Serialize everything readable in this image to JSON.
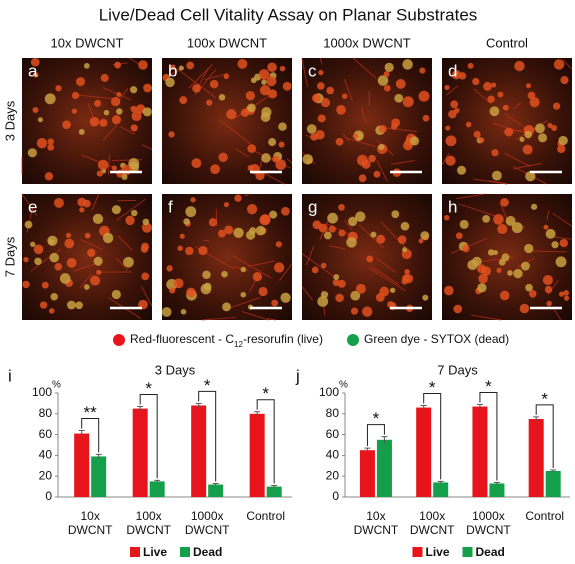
{
  "title": "Live/Dead Cell Vitality Assay on Planar Substrates",
  "columns": [
    "10x DWCNT",
    "100x DWCNT",
    "1000x DWCNT",
    "Control"
  ],
  "rows": [
    "3 Days",
    "7 Days"
  ],
  "panels": [
    [
      "a",
      "b",
      "c",
      "d"
    ],
    [
      "e",
      "f",
      "g",
      "h"
    ]
  ],
  "legend": {
    "live": {
      "prefix": "Red-fluorescent - C",
      "subscript": "12",
      "suffix": "-resorufin (live)"
    },
    "dead": "Green dye - SYTOX (dead)"
  },
  "chart_data": [
    {
      "type": "bar",
      "panel": "i",
      "title": "3 Days",
      "unit": "%",
      "categories": [
        "10x DWCNT",
        "100x DWCNT",
        "1000x DWCNT",
        "Control"
      ],
      "series": [
        {
          "name": "Live",
          "color": "#e8141b",
          "values": [
            61,
            85,
            88,
            80
          ],
          "errors": [
            3,
            2,
            2,
            2
          ]
        },
        {
          "name": "Dead",
          "color": "#14a04b",
          "values": [
            39,
            15,
            12,
            10
          ],
          "errors": [
            2,
            1,
            1,
            1
          ]
        }
      ],
      "significance": [
        "**",
        "*",
        "*",
        "*"
      ],
      "ylim": [
        0,
        100
      ],
      "yticks": [
        0,
        20,
        40,
        60,
        80,
        100
      ]
    },
    {
      "type": "bar",
      "panel": "j",
      "title": "7 Days",
      "unit": "%",
      "categories": [
        "10x DWCNT",
        "100x DWCNT",
        "1000x DWCNT",
        "Control"
      ],
      "series": [
        {
          "name": "Live",
          "color": "#e8141b",
          "values": [
            45,
            86,
            87,
            75
          ],
          "errors": [
            2,
            2,
            2,
            2
          ]
        },
        {
          "name": "Dead",
          "color": "#14a04b",
          "values": [
            55,
            14,
            13,
            25
          ],
          "errors": [
            3,
            1,
            1,
            1
          ]
        }
      ],
      "significance": [
        "*",
        "*",
        "*",
        "*"
      ],
      "ylim": [
        0,
        100
      ],
      "yticks": [
        0,
        20,
        40,
        60,
        80,
        100
      ]
    }
  ]
}
